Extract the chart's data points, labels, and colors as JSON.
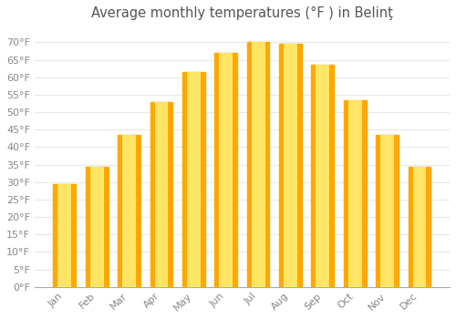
{
  "title": "Average monthly temperatures (°F ) in Belinţ",
  "months": [
    "Jan",
    "Feb",
    "Mar",
    "Apr",
    "May",
    "Jun",
    "Jul",
    "Aug",
    "Sep",
    "Oct",
    "Nov",
    "Dec"
  ],
  "values": [
    29.5,
    34.5,
    43.5,
    53.0,
    61.5,
    67.0,
    70.0,
    69.5,
    63.5,
    53.5,
    43.5,
    34.5
  ],
  "bar_color_center": "#FFE566",
  "bar_color_edge": "#FFA800",
  "background_color": "#FFFFFF",
  "grid_color": "#E8E8E8",
  "ylim": [
    0,
    75
  ],
  "yticks": [
    0,
    5,
    10,
    15,
    20,
    25,
    30,
    35,
    40,
    45,
    50,
    55,
    60,
    65,
    70
  ],
  "ytick_labels": [
    "0°F",
    "5°F",
    "10°F",
    "15°F",
    "20°F",
    "25°F",
    "30°F",
    "35°F",
    "40°F",
    "45°F",
    "50°F",
    "55°F",
    "60°F",
    "65°F",
    "70°F"
  ],
  "title_fontsize": 10.5,
  "tick_fontsize": 8,
  "bar_width": 0.7
}
